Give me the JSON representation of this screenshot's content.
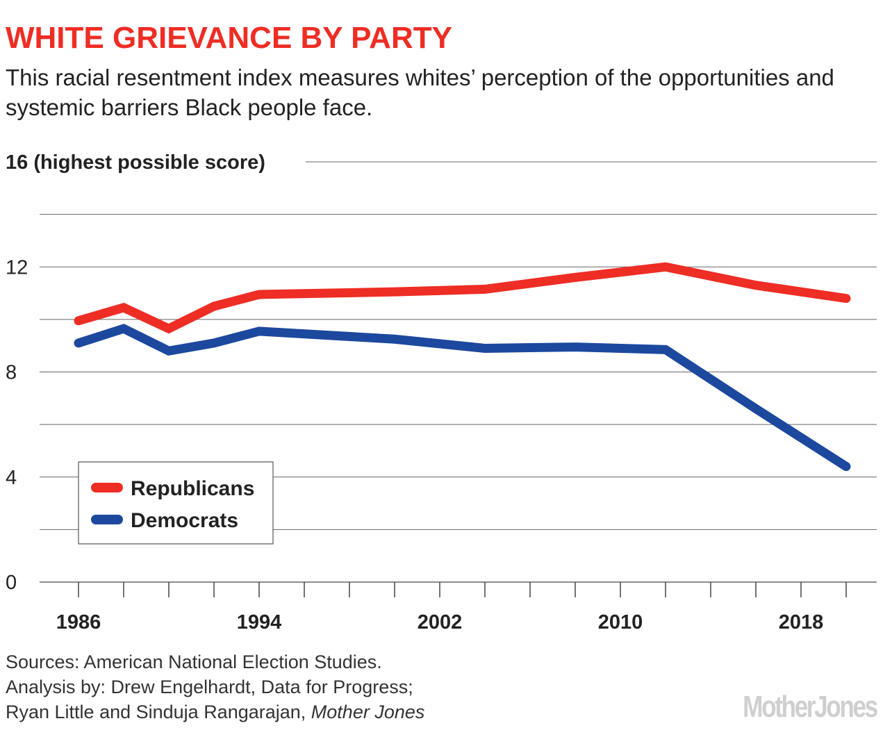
{
  "chart_data": {
    "type": "line",
    "title": "WHITE GRIEVANCE BY PARTY",
    "subtitle": "This racial resentment index measures whites’ perception of the opportunities and systemic barriers Black people face.",
    "ylim": [
      0,
      16
    ],
    "yticks": [
      0,
      4,
      8,
      12
    ],
    "ytick_labels": [
      "0",
      "4",
      "8",
      "12"
    ],
    "ytop_label": "16 (highest possible score)",
    "xlim": [
      1986,
      2020
    ],
    "xticks": [
      1986,
      1994,
      2002,
      2010,
      2018
    ],
    "xtick_labels": [
      "1986",
      "1994",
      "2002",
      "2010",
      "2018"
    ],
    "grid": true,
    "legend_placement": "bottom-left",
    "series": [
      {
        "name": "Republicans",
        "color": "#ee2d24",
        "x": [
          1986,
          1988,
          1990,
          1992,
          1994,
          2000,
          2004,
          2008,
          2012,
          2016,
          2020
        ],
        "values": [
          9.95,
          10.45,
          9.65,
          10.5,
          10.95,
          11.05,
          11.15,
          11.6,
          12.0,
          11.3,
          10.8
        ]
      },
      {
        "name": "Democrats",
        "color": "#1c489e",
        "x": [
          1986,
          1988,
          1990,
          1992,
          1994,
          2000,
          2004,
          2008,
          2012,
          2016,
          2020
        ],
        "values": [
          9.1,
          9.65,
          8.8,
          9.1,
          9.55,
          9.25,
          8.9,
          8.95,
          8.85,
          6.6,
          4.4
        ]
      }
    ]
  },
  "sources": {
    "line1": "Sources: American National Election Studies.",
    "line2": "Analysis by: Drew Engelhardt, Data for Progress;",
    "line3_plain": "Ryan Little and Sinduja Rangarajan, ",
    "line3_italic": "Mother Jones"
  },
  "logo": "MotherJones"
}
